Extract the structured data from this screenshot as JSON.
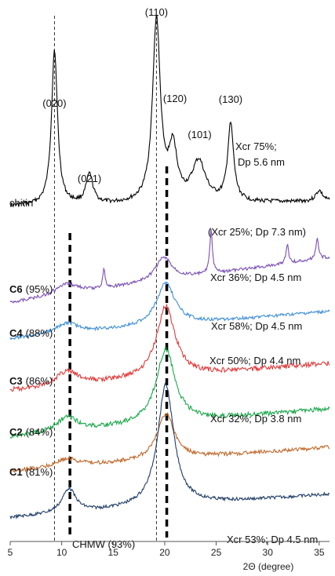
{
  "chart_data": {
    "type": "line",
    "title": "",
    "xlabel": "2Θ (degree)",
    "ylabel": "",
    "xlim": [
      5,
      36
    ],
    "x_ticks": [
      5,
      10,
      15,
      20,
      25,
      30,
      35
    ],
    "grid": false,
    "legend": "none",
    "reference_lines": {
      "thin_dashed_x": [
        9.3,
        19.2
      ],
      "thick_dashed_x": [
        10.8,
        20.2
      ]
    },
    "peak_labels": [
      {
        "text": "(020)",
        "x": 9.3
      },
      {
        "text": "(021)",
        "x": 12.7
      },
      {
        "text": "(110)",
        "x": 19.2
      },
      {
        "text": "(120)",
        "x": 21.0
      },
      {
        "text": "(101)",
        "x": 23.4
      },
      {
        "text": "(130)",
        "x": 26.4
      }
    ],
    "series": [
      {
        "sample": "chitin",
        "pct": "",
        "bold": false,
        "note": "Xcr 75%;",
        "note2": "Dp 5.6 nm",
        "color": "#000000",
        "peaks": [
          {
            "x": 9.3,
            "h": 0.85,
            "w": 0.35
          },
          {
            "x": 12.7,
            "h": 0.16,
            "w": 0.4
          },
          {
            "x": 19.2,
            "h": 1.0,
            "w": 0.45
          },
          {
            "x": 20.8,
            "h": 0.28,
            "w": 0.5
          },
          {
            "x": 23.3,
            "h": 0.22,
            "w": 0.8
          },
          {
            "x": 26.4,
            "h": 0.42,
            "w": 0.35
          },
          {
            "x": 35.0,
            "h": 0.06,
            "w": 0.4
          }
        ]
      },
      {
        "sample": "C6",
        "pct": "(95%)",
        "bold": true,
        "note": "(Xcr 25%; Dp 7.3 nm)",
        "note2": "",
        "color": "#7a4fb2",
        "peaks": [
          {
            "x": 10.5,
            "h": 0.15,
            "w": 1.4
          },
          {
            "x": 14.1,
            "h": 0.25,
            "w": 0.15
          },
          {
            "x": 19.9,
            "h": 0.33,
            "w": 1.0
          },
          {
            "x": 24.5,
            "h": 0.62,
            "w": 0.15
          },
          {
            "x": 31.9,
            "h": 0.27,
            "w": 0.15
          },
          {
            "x": 34.8,
            "h": 0.3,
            "w": 0.15
          }
        ]
      },
      {
        "sample": "C4",
        "pct": "(88%)",
        "bold": true,
        "note": "Xcr 36%; Dp 4.5 nm",
        "note2": "",
        "color": "#3f8fd6",
        "peaks": [
          {
            "x": 10.5,
            "h": 0.15,
            "w": 1.4
          },
          {
            "x": 20.1,
            "h": 0.6,
            "w": 1.1
          }
        ]
      },
      {
        "sample": "C3",
        "pct": "(86%)",
        "bold": true,
        "note": "Xcr 58%; Dp 4.5 nm",
        "note2": "",
        "color": "#e03a3a",
        "peaks": [
          {
            "x": 10.5,
            "h": 0.2,
            "w": 1.3
          },
          {
            "x": 20.1,
            "h": 1.0,
            "w": 1.1
          }
        ]
      },
      {
        "sample": "C2",
        "pct": "(84%)",
        "bold": true,
        "note": "Xcr 50%; Dp 4.4 nm",
        "note2": "",
        "color": "#1aa84a",
        "peaks": [
          {
            "x": 10.5,
            "h": 0.2,
            "w": 1.3
          },
          {
            "x": 20.1,
            "h": 1.05,
            "w": 1.1
          }
        ]
      },
      {
        "sample": "C1",
        "pct": "(81%)",
        "bold": true,
        "note": "Xcr 32%; Dp 3.8 nm",
        "note2": "",
        "color": "#c0692c",
        "peaks": [
          {
            "x": 10.5,
            "h": 0.12,
            "w": 1.4
          },
          {
            "x": 20.1,
            "h": 0.65,
            "w": 1.0
          }
        ]
      },
      {
        "sample": "CHMW (93%)",
        "pct": "",
        "bold": false,
        "note": "Xcr 53%; Dp 4.5 nm",
        "note2": "",
        "color": "#1f3c66",
        "peaks": [
          {
            "x": 10.7,
            "h": 0.2,
            "w": 0.8
          },
          {
            "x": 20.1,
            "h": 1.0,
            "w": 0.95
          }
        ]
      }
    ]
  }
}
